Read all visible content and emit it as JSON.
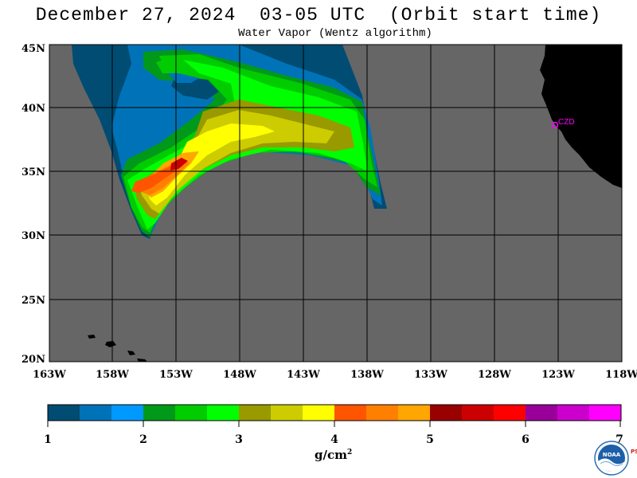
{
  "title": "December 27, 2024  03-05 UTC  (Orbit start time)",
  "subtitle": "Water Vapor (Wentz algorithm)",
  "lat_labels": [
    "45N",
    "40N",
    "35N",
    "30N",
    "25N",
    "20N"
  ],
  "lon_labels": [
    "163W",
    "158W",
    "153W",
    "148W",
    "143W",
    "138W",
    "133W",
    "128W",
    "123W",
    "118W"
  ],
  "station_label": "CZD",
  "colorbar": {
    "labels": [
      "1",
      "2",
      "3",
      "4",
      "5",
      "6",
      "7"
    ],
    "colors": [
      "#004c73",
      "#0073b8",
      "#0099ff",
      "#00991a",
      "#00cc00",
      "#00ff00",
      "#999900",
      "#cccc00",
      "#ffff00",
      "#ff5500",
      "#ff8000",
      "#ffa600",
      "#990000",
      "#cc0000",
      "#ff0000",
      "#990099",
      "#cc00cc",
      "#ff00ff"
    ],
    "units_base": "g/cm",
    "units_exp": "2"
  },
  "colors": {
    "ocean_nodata": "#666666",
    "land": "#000000",
    "grid": "#000000",
    "station": "#ff00ff"
  },
  "logo": {
    "text": "NOAA",
    "psl": "PSL"
  }
}
